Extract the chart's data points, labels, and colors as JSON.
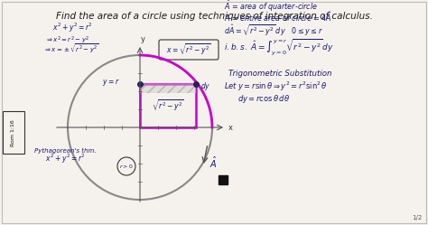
{
  "background_color": "#f0ede8",
  "title_text": "Find the area of a circle using techniques of integration of calculus.",
  "title_fontsize": 7.5,
  "title_color": "#1a1a1a",
  "slide_bg": "#f5f2ed",
  "border_color": "#cccccc",
  "left_label": "Rom 1:16",
  "page_number": "1/2",
  "circle_color": "#888888",
  "circle_lw": 1.5,
  "quarter_circle_color": "#cc00cc",
  "quarter_circle_lw": 2.0,
  "rect_color": "#cc00cc",
  "hatch_color": "#888888",
  "math_color": "#1a1a6e",
  "right_math": [
    "\\hat{A} = area\\,of\\,quarter\\!-\\!circle",
    "A = entire\\,area\\,of\\,circle = 4\\hat{A}",
    "d\\hat{A} = \\sqrt{r^2-y^2}\\,dy \\quad 0\\leq y\\leq r",
    "i.b.s.\\; \\hat{A} = \\int_{y=0}^{y=r} \\sqrt{r^2-y^2}\\,dy",
    "Trigonometric\\,Substitution",
    "Let\\;y = r\\sin\\theta \\Rightarrow y^2 = r^2\\sin^2\\theta",
    "dy = r\\cos\\theta\\,d\\theta"
  ]
}
